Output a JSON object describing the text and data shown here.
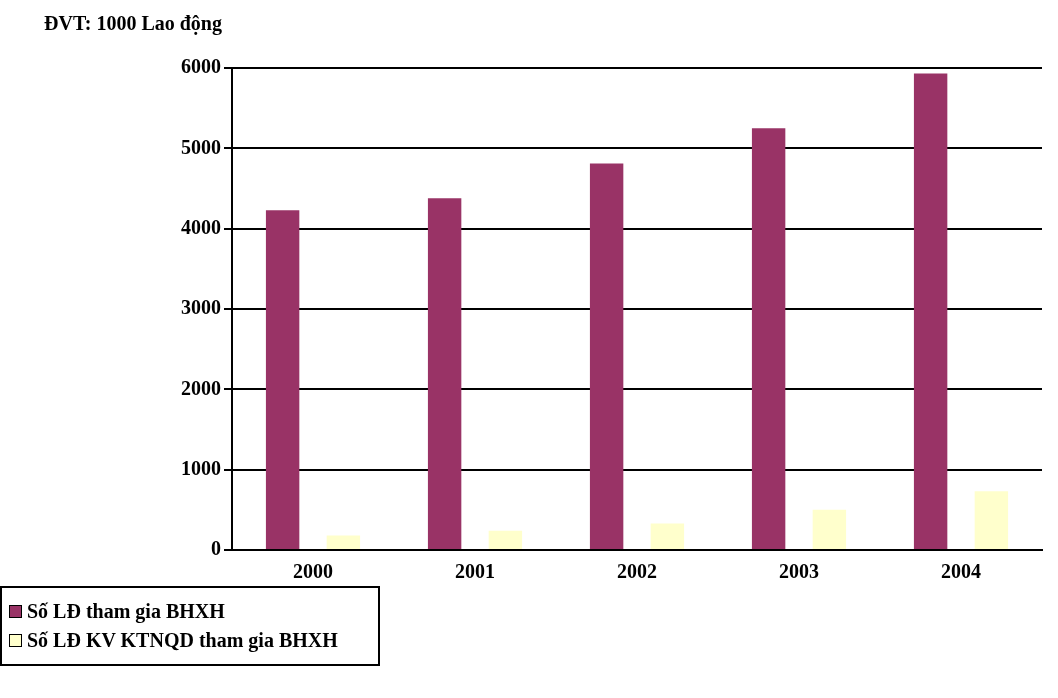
{
  "chart_data": {
    "type": "bar",
    "ylabel": "ĐVT: 1000 Lao động",
    "categories": [
      "2000",
      "2001",
      "2002",
      "2003",
      "2004"
    ],
    "series": [
      {
        "name": "Số LĐ tham gia BHXH",
        "color": "#993366",
        "values": [
          4230,
          4380,
          4810,
          5250,
          5930
        ]
      },
      {
        "name": "Số LĐ KV KTNQD tham gia BHXH",
        "color": "#ffffcc",
        "values": [
          180,
          240,
          330,
          500,
          730
        ]
      }
    ],
    "ylim": [
      0,
      6000
    ],
    "yticks": [
      0,
      1000,
      2000,
      3000,
      4000,
      5000,
      6000
    ],
    "grid": "y",
    "legend": "bottom left"
  }
}
